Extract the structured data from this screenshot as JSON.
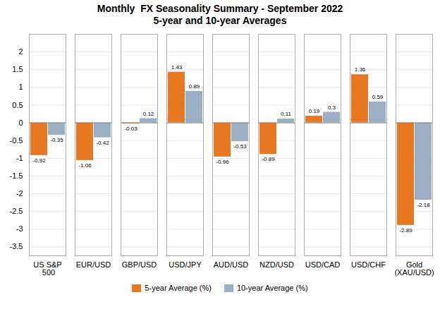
{
  "chart_data": {
    "type": "bar",
    "title": "Monthly  FX Seasonality Summary - September 2022",
    "subtitle": "5-year and 10-year Averages",
    "categories": [
      "US S&P\n 500",
      "EUR/USD",
      "GBP/USD",
      "USD/JPY",
      "AUD/USD",
      "NZD/USD",
      "USD/CAD",
      "USD/CHF",
      "Gold\n(XAU/USD)"
    ],
    "series": [
      {
        "name": "5-year Average (%)",
        "color": "#E87722",
        "values": [
          -0.92,
          -1.06,
          -0.03,
          1.43,
          -0.96,
          -0.89,
          0.19,
          1.36,
          -2.89
        ]
      },
      {
        "name": "10-year Average (%)",
        "color": "#9BAFC4",
        "values": [
          -0.35,
          -0.42,
          0.12,
          0.89,
          -0.53,
          0.11,
          0.3,
          0.59,
          -2.18
        ]
      }
    ],
    "ylim": [
      -3.75,
      2.5
    ],
    "yticks": [
      -3.5,
      -3,
      -2.5,
      -2,
      -1.5,
      -1,
      -0.5,
      0,
      0.5,
      1,
      1.5,
      2
    ],
    "grid": true,
    "legend": "bottom",
    "data_labels": true
  }
}
